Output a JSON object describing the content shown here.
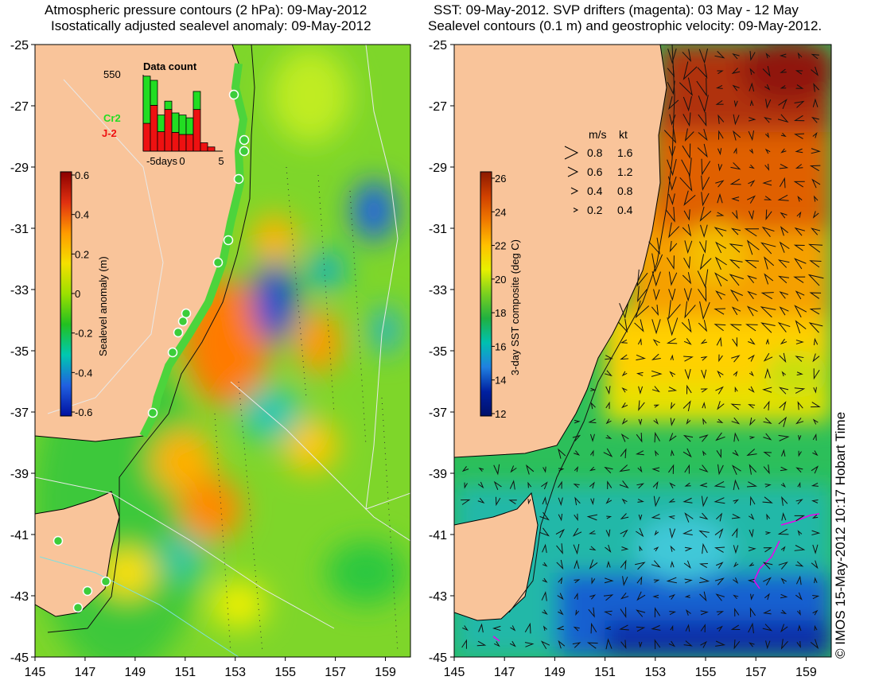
{
  "left_panel": {
    "title_line1": "Atmospheric pressure contours (2 hPa): 09-May-2012",
    "title_line2": "Isostatically adjusted sealevel anomaly: 09-May-2012",
    "colorbar": {
      "label": "Sealevel anomaly (m)",
      "ticks": [
        "0.6",
        "0.4",
        "0.2",
        "0",
        "-0.2",
        "-0.4",
        "-0.6"
      ],
      "colors": [
        "#8b0000",
        "#e03010",
        "#ff9a00",
        "#f5e000",
        "#9be000",
        "#22c020",
        "#00c8b0",
        "#2060e0",
        "#0010a0"
      ]
    },
    "inset": {
      "title": "Data count",
      "ymax_label": "550",
      "xtick_labels": [
        "-5days",
        "0",
        "5"
      ],
      "legend": [
        {
          "label": "Cr2",
          "color": "#22dd22"
        },
        {
          "label": "J-2",
          "color": "#ee1111"
        }
      ],
      "chart_data": {
        "type": "bar",
        "title": "Data count",
        "x": [
          -5,
          -4,
          -3,
          -2,
          -1,
          0,
          1,
          2,
          3,
          4
        ],
        "ylim": [
          0,
          550
        ],
        "series": [
          {
            "name": "J-2",
            "values": [
              200,
              330,
              140,
              300,
              135,
              120,
              120,
              300,
              60,
              30
            ]
          },
          {
            "name": "Cr2",
            "values": [
              340,
              180,
              120,
              60,
              140,
              140,
              120,
              130,
              0,
              0
            ]
          }
        ]
      }
    }
  },
  "right_panel": {
    "title_line1": "SST: 09-May-2012. SVP drifters (magenta): 03 May - 12 May",
    "title_line2": "Sealevel contours (0.1 m) and geostrophic velocity: 09-May-2012.",
    "colorbar": {
      "label": "3-day SST composite (deg C)",
      "ticks": [
        "26",
        "24",
        "22",
        "20",
        "18",
        "16",
        "14",
        "12"
      ],
      "colors": [
        "#8b1a00",
        "#d04000",
        "#f07a00",
        "#ffc000",
        "#e8f000",
        "#7ad020",
        "#20b040",
        "#00c0b0",
        "#2080e0",
        "#0020a0",
        "#00106a"
      ]
    },
    "velocity_legend": {
      "headers": [
        "m/s",
        "kt"
      ],
      "rows": [
        [
          "0.8",
          "1.6"
        ],
        [
          "0.6",
          "1.2"
        ],
        [
          "0.4",
          "0.8"
        ],
        [
          "0.2",
          "0.4"
        ]
      ]
    }
  },
  "axes": {
    "x_ticks": [
      "145",
      "147",
      "149",
      "151",
      "153",
      "155",
      "157",
      "159"
    ],
    "y_ticks": [
      "-25",
      "-27",
      "-29",
      "-31",
      "-33",
      "-35",
      "-37",
      "-39",
      "-41",
      "-43",
      "-45"
    ],
    "lon_range": [
      145,
      160
    ],
    "lat_range": [
      -45,
      -25
    ]
  },
  "credit": "© IMOS 15-May-2012 10:17 Hobart Time",
  "colors": {
    "land": "#f9c49a",
    "coast": "#000000",
    "drifter": "#ee00ee"
  }
}
